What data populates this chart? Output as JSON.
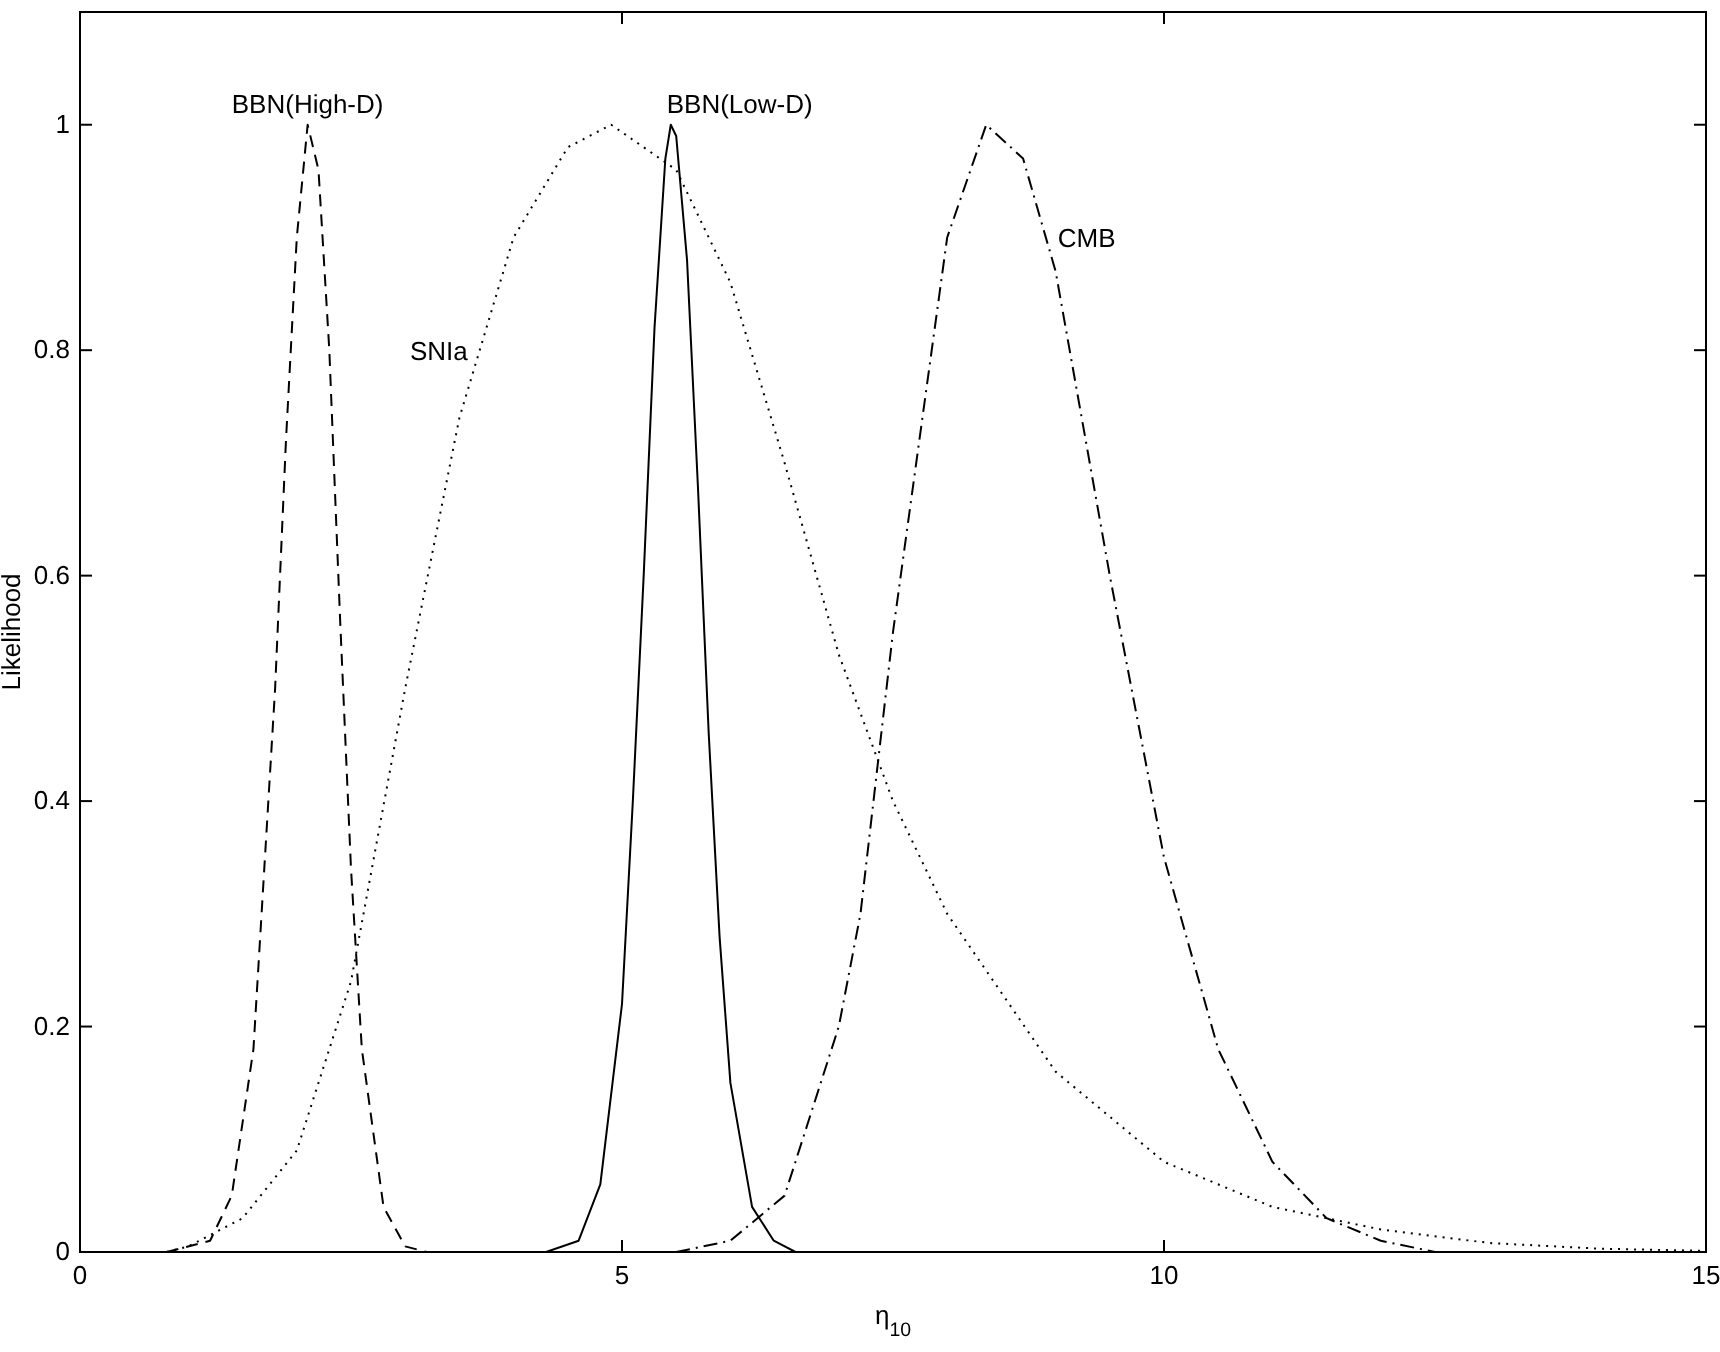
{
  "chart_data": {
    "type": "line",
    "xlabel": "η$_{10}$",
    "ylabel": "Likelihood",
    "xlim": [
      0,
      15
    ],
    "ylim": [
      0,
      1.1
    ],
    "xticks": [
      0,
      5,
      10,
      15
    ],
    "yticks": [
      0,
      0.2,
      0.4,
      0.6,
      0.8,
      1
    ],
    "grid": false,
    "marker": "none",
    "series": [
      {
        "name": "BBN(High-D)",
        "color": "#000000",
        "line_style": "dashed",
        "x": [
          0.8,
          1.2,
          1.4,
          1.6,
          1.8,
          1.9,
          2.0,
          2.1,
          2.2,
          2.3,
          2.4,
          2.5,
          2.6,
          2.8,
          3.0,
          3.2
        ],
        "values": [
          0,
          0.01,
          0.05,
          0.18,
          0.5,
          0.72,
          0.9,
          1.0,
          0.96,
          0.8,
          0.56,
          0.34,
          0.18,
          0.04,
          0.005,
          0
        ]
      },
      {
        "name": "SNIa",
        "color": "#000000",
        "line_style": "dotted",
        "x": [
          0.8,
          1.0,
          1.5,
          2.0,
          2.5,
          3.0,
          3.5,
          4.0,
          4.5,
          4.9,
          5.5,
          6.0,
          6.5,
          7.0,
          7.5,
          8.0,
          9.0,
          10.0,
          11.0,
          12.0,
          13.0,
          14.0,
          15.0
        ],
        "values": [
          0,
          0.005,
          0.03,
          0.09,
          0.24,
          0.5,
          0.74,
          0.9,
          0.98,
          1.0,
          0.96,
          0.86,
          0.7,
          0.53,
          0.4,
          0.3,
          0.16,
          0.08,
          0.04,
          0.02,
          0.008,
          0.003,
          0.001
        ]
      },
      {
        "name": "BBN(Low-D)",
        "color": "#000000",
        "line_style": "solid",
        "x": [
          0,
          4.3,
          4.6,
          4.8,
          5.0,
          5.1,
          5.2,
          5.3,
          5.4,
          5.45,
          5.5,
          5.6,
          5.7,
          5.8,
          5.9,
          6.0,
          6.2,
          6.4,
          6.6,
          15
        ],
        "values": [
          0,
          0,
          0.01,
          0.06,
          0.22,
          0.4,
          0.6,
          0.82,
          0.97,
          1.0,
          0.99,
          0.88,
          0.68,
          0.46,
          0.28,
          0.15,
          0.04,
          0.01,
          0,
          0
        ]
      },
      {
        "name": "CMB",
        "color": "#000000",
        "line_style": "dashdot",
        "x": [
          5.5,
          6.0,
          6.5,
          7.0,
          7.2,
          7.5,
          8.0,
          8.36,
          8.7,
          9.0,
          9.5,
          10.0,
          10.5,
          11.0,
          11.5,
          12.0,
          12.5
        ],
        "values": [
          0,
          0.01,
          0.05,
          0.2,
          0.3,
          0.55,
          0.9,
          1.0,
          0.97,
          0.87,
          0.6,
          0.35,
          0.18,
          0.08,
          0.03,
          0.01,
          0
        ]
      }
    ]
  }
}
